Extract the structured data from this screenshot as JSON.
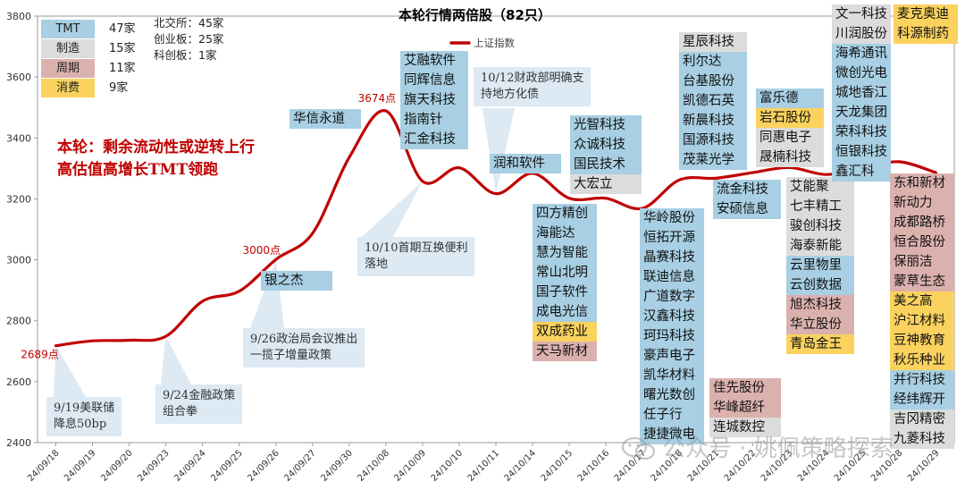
{
  "chart_data": {
    "type": "line",
    "title": "本轮行情两倍股（82只）",
    "xlabel": "",
    "ylabel": "",
    "ylim": [
      2400,
      3800
    ],
    "yticks": [
      2400,
      2600,
      2800,
      3000,
      3200,
      3400,
      3600,
      3800
    ],
    "grid": false,
    "series_line_color": "#c00000",
    "legend": {
      "placement": "top-center",
      "series_name": "上证指数",
      "categories": [
        {
          "name": "TMT",
          "count": "47家",
          "color": "#a8cfe3"
        },
        {
          "name": "制造",
          "count": "15家",
          "color": "#dcdcdc"
        },
        {
          "name": "周期",
          "count": "11家",
          "color": "#dbb1ae"
        },
        {
          "name": "消费",
          "count": "9家",
          "color": "#fbd25e"
        }
      ]
    },
    "exchange_counts": [
      {
        "label": "北交所：",
        "count": "45家"
      },
      {
        "label": "创业板：",
        "count": "25家"
      },
      {
        "label": "科创板：",
        "count": "1家"
      }
    ],
    "x": [
      "24/09/18",
      "24/09/19",
      "24/09/20",
      "24/09/23",
      "24/09/24",
      "24/09/25",
      "24/09/26",
      "24/09/27",
      "24/09/30",
      "24/10/08",
      "24/10/09",
      "24/10/10",
      "24/10/11",
      "24/10/14",
      "24/10/15",
      "24/10/16",
      "24/10/17",
      "24/10/18",
      "24/10/21",
      "24/10/22",
      "24/10/23",
      "24/10/24",
      "24/10/25",
      "24/10/28",
      "24/10/29"
    ],
    "tick_labels": [
      "24/09/18",
      "24/09/19",
      "24/09/20",
      "24/09/23",
      "24/09/24",
      "24/09/25",
      "24/09/26",
      "24/09/27",
      "24/09/30",
      "24/10/08",
      "24/10/09",
      "24/10/10",
      "24/10/11",
      "24/10/14",
      "24/10/15",
      "24/10/16",
      "24/10/17",
      "24/10/18",
      "24/10/21",
      "24/10/22",
      "24/10/23",
      "24/10/24",
      "24/10/25",
      "24/10/28",
      "24/10/29"
    ],
    "series": [
      {
        "name": "上证指数",
        "values": [
          2718,
          2734,
          2736,
          2749,
          2864,
          2897,
          3001,
          3087,
          3336,
          3489,
          3258,
          3302,
          3217,
          3284,
          3202,
          3202,
          3169,
          3262,
          3268,
          3286,
          3303,
          3280,
          3300,
          3322,
          3286
        ]
      }
    ],
    "annotations": {
      "point_labels": [
        {
          "x": "24/09/18",
          "y": 2718,
          "text": "2689点"
        },
        {
          "x": "24/09/26",
          "y": 3001,
          "text": "3000点"
        },
        {
          "x": "24/10/08",
          "y": 3489,
          "text": "3674点"
        }
      ],
      "headline": [
        "本轮：剩余流动性或逆转上行",
        "高估值高增长TMT领跑"
      ],
      "event_notes": [
        [
          "9/19美联储",
          "降息50bp"
        ],
        [
          "9/24金融政策",
          "组合拳"
        ],
        [
          "9/26政治局会议推出",
          "一揽子增量政策"
        ],
        [
          "10/10首期互换便利",
          "落地"
        ],
        [
          "10/12财政部明确支",
          "持地方化债"
        ]
      ]
    },
    "stock_tags": [
      {
        "date": "24/09/26",
        "stocks": [
          {
            "name": "银之杰",
            "sector": "TMT"
          }
        ]
      },
      {
        "date": "24/09/30",
        "stocks": [
          {
            "name": "华信永道",
            "sector": "TMT"
          }
        ]
      },
      {
        "date": "24/10/09",
        "stocks": [
          {
            "name": "艾融软件",
            "sector": "TMT"
          },
          {
            "name": "同辉信息",
            "sector": "TMT"
          },
          {
            "name": "旗天科技",
            "sector": "TMT"
          },
          {
            "name": "指南针",
            "sector": "TMT"
          },
          {
            "name": "汇金科技",
            "sector": "TMT"
          }
        ]
      },
      {
        "date": "24/10/11",
        "stocks": [
          {
            "name": "润和软件",
            "sector": "TMT"
          }
        ]
      },
      {
        "date": "24/10/15",
        "stocks": [
          {
            "name": "四方精创",
            "sector": "TMT"
          },
          {
            "name": "海能达",
            "sector": "TMT"
          },
          {
            "name": "慧为智能",
            "sector": "TMT"
          },
          {
            "name": "常山北明",
            "sector": "TMT"
          },
          {
            "name": "国子软件",
            "sector": "TMT"
          },
          {
            "name": "成电光信",
            "sector": "TMT"
          },
          {
            "name": "双成药业",
            "sector": "消费"
          },
          {
            "name": "天马新材",
            "sector": "周期"
          }
        ]
      },
      {
        "date": "24/10/16",
        "stocks": [
          {
            "name": "光智科技",
            "sector": "TMT"
          },
          {
            "name": "众诚科技",
            "sector": "TMT"
          },
          {
            "name": "国民技术",
            "sector": "TMT"
          },
          {
            "name": "大宏立",
            "sector": "制造"
          }
        ]
      },
      {
        "date": "24/10/18",
        "stocks": [
          {
            "name": "华岭股份",
            "sector": "TMT"
          },
          {
            "name": "恒拓开源",
            "sector": "TMT"
          },
          {
            "name": "晶赛科技",
            "sector": "TMT"
          },
          {
            "name": "联迪信息",
            "sector": "TMT"
          },
          {
            "name": "广道数字",
            "sector": "TMT"
          },
          {
            "name": "汉鑫科技",
            "sector": "TMT"
          },
          {
            "name": "珂玛科技",
            "sector": "TMT"
          },
          {
            "name": "豪声电子",
            "sector": "TMT"
          },
          {
            "name": "凯华材料",
            "sector": "TMT"
          },
          {
            "name": "曙光数创",
            "sector": "TMT"
          },
          {
            "name": "任子行",
            "sector": "TMT"
          },
          {
            "name": "捷捷微电",
            "sector": "TMT"
          }
        ]
      },
      {
        "date": "24/10/21",
        "stocks": [
          {
            "name": "星辰科技",
            "sector": "制造"
          },
          {
            "name": "利尔达",
            "sector": "TMT"
          },
          {
            "name": "台基股份",
            "sector": "TMT"
          },
          {
            "name": "凯德石英",
            "sector": "TMT"
          },
          {
            "name": "新晨科技",
            "sector": "TMT"
          },
          {
            "name": "国源科技",
            "sector": "TMT"
          },
          {
            "name": "茂莱光学",
            "sector": "TMT"
          }
        ]
      },
      {
        "date": "24/10/22",
        "stocks": [
          {
            "name": "流金科技",
            "sector": "TMT"
          },
          {
            "name": "安硕信息",
            "sector": "TMT"
          }
        ]
      },
      {
        "date": "24/10/22",
        "stocks": [
          {
            "name": "佳先股份",
            "sector": "周期"
          },
          {
            "name": "华峰超纤",
            "sector": "周期"
          },
          {
            "name": "连城数控",
            "sector": "制造"
          }
        ]
      },
      {
        "date": "24/10/23",
        "stocks": [
          {
            "name": "富乐德",
            "sector": "TMT"
          },
          {
            "name": "岩石股份",
            "sector": "消费"
          },
          {
            "name": "同惠电子",
            "sector": "制造"
          },
          {
            "name": "晟楠科技",
            "sector": "制造"
          }
        ]
      },
      {
        "date": "24/10/24",
        "stocks": [
          {
            "name": "艾能聚",
            "sector": "制造"
          },
          {
            "name": "七丰精工",
            "sector": "制造"
          },
          {
            "name": "骏创科技",
            "sector": "制造"
          },
          {
            "name": "海泰新能",
            "sector": "制造"
          },
          {
            "name": "云里物里",
            "sector": "TMT"
          },
          {
            "name": "云创数据",
            "sector": "TMT"
          },
          {
            "name": "旭杰科技",
            "sector": "周期"
          },
          {
            "name": "华立股份",
            "sector": "周期"
          },
          {
            "name": "青岛金王",
            "sector": "消费"
          }
        ]
      },
      {
        "date": "24/10/25",
        "stocks": [
          {
            "name": "文一科技",
            "sector": "制造"
          },
          {
            "name": "川润股份",
            "sector": "制造"
          },
          {
            "name": "海希通讯",
            "sector": "TMT"
          },
          {
            "name": "微创光电",
            "sector": "TMT"
          },
          {
            "name": "城地香江",
            "sector": "TMT"
          },
          {
            "name": "天龙集团",
            "sector": "TMT"
          },
          {
            "name": "荣科科技",
            "sector": "TMT"
          },
          {
            "name": "恒银科技",
            "sector": "TMT"
          },
          {
            "name": "鑫汇科",
            "sector": "TMT"
          }
        ]
      },
      {
        "date": "24/10/28",
        "stocks": [
          {
            "name": "麦克奥迪",
            "sector": "消费"
          },
          {
            "name": "科源制药",
            "sector": "消费"
          }
        ]
      },
      {
        "date": "24/10/29",
        "stocks": [
          {
            "name": "东和新材",
            "sector": "周期"
          },
          {
            "name": "新动力",
            "sector": "周期"
          },
          {
            "name": "成都路桥",
            "sector": "周期"
          },
          {
            "name": "恒合股份",
            "sector": "周期"
          },
          {
            "name": "保丽洁",
            "sector": "周期"
          },
          {
            "name": "蒙草生态",
            "sector": "周期"
          },
          {
            "name": "美之高",
            "sector": "消费"
          },
          {
            "name": "沪江材料",
            "sector": "消费"
          },
          {
            "name": "豆神教育",
            "sector": "消费"
          },
          {
            "name": "秋乐种业",
            "sector": "消费"
          },
          {
            "name": "并行科技",
            "sector": "TMT"
          },
          {
            "name": "经纬辉开",
            "sector": "TMT"
          },
          {
            "name": "吉冈精密",
            "sector": "制造"
          },
          {
            "name": "九菱科技",
            "sector": "制造"
          }
        ]
      }
    ]
  },
  "watermark": {
    "text": "公众号 · 姚佩策略探索",
    "icon": "wechat-icon"
  }
}
